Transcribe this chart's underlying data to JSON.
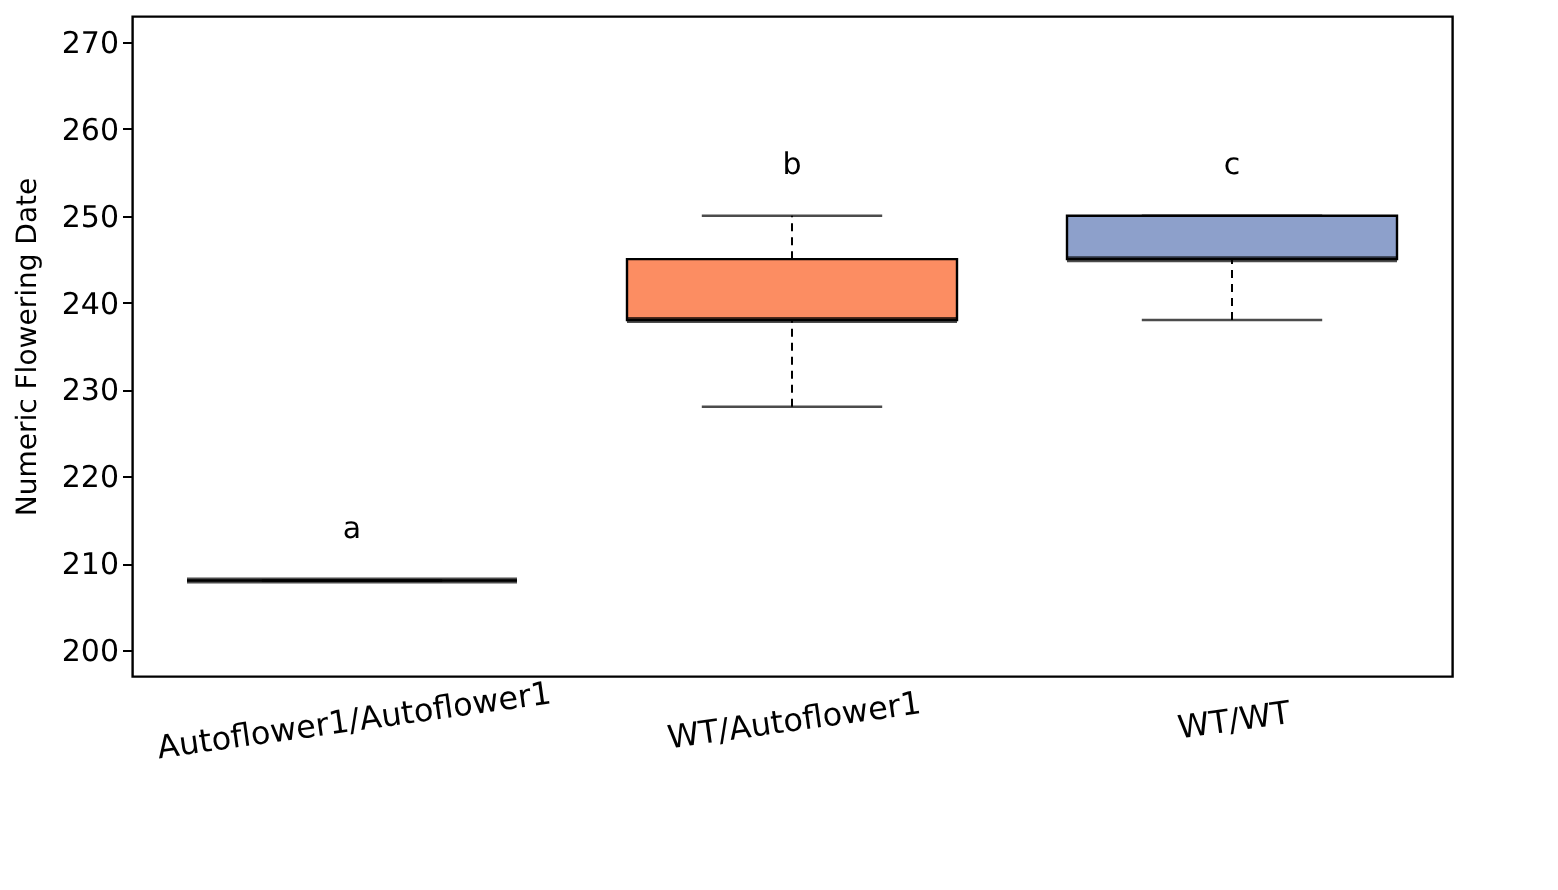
{
  "chart_data": {
    "type": "box",
    "ylabel": "Numeric Flowering Date",
    "categories": [
      "Autoflower1/Autoflower1",
      "WT/Autoflower1",
      "WT/WT"
    ],
    "boxes": [
      {
        "low": 208,
        "q1": 208,
        "median": 208,
        "q3": 208,
        "high": 208
      },
      {
        "low": 228,
        "q1": 238,
        "median": 238,
        "q3": 245,
        "high": 250
      },
      {
        "low": 238,
        "q1": 245,
        "median": 245,
        "q3": 250,
        "high": 250
      }
    ],
    "colors": [
      "#000000",
      "#fc8d62",
      "#8da0cb"
    ],
    "ylim": [
      197,
      273
    ],
    "yticks": [
      200,
      210,
      220,
      230,
      240,
      250,
      260,
      270
    ],
    "grid": false,
    "annotations": [
      "a",
      "b",
      "c"
    ]
  }
}
